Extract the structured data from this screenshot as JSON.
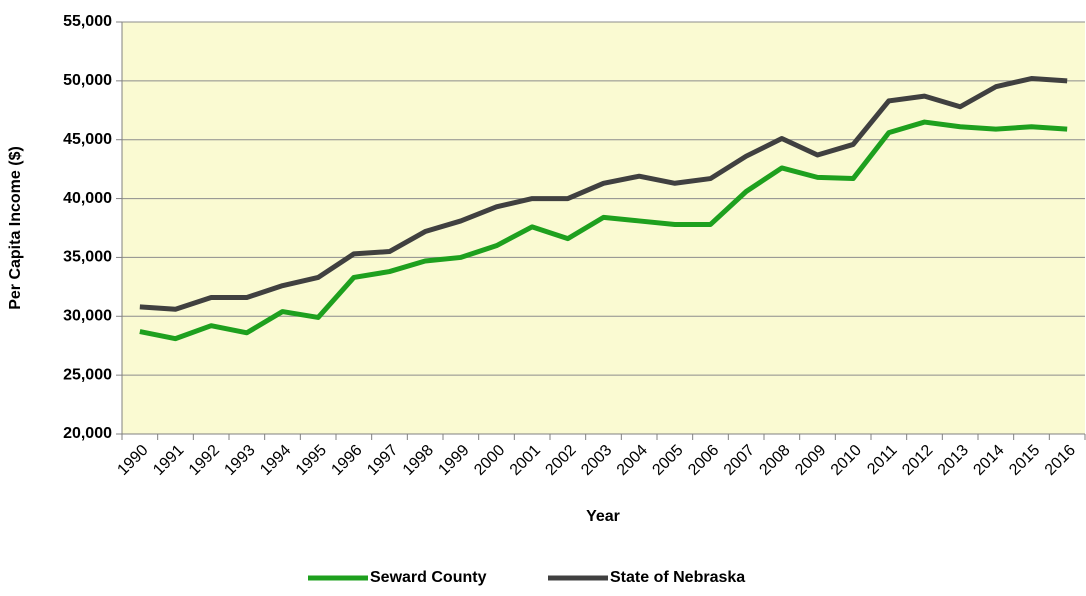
{
  "chart_data": {
    "type": "line",
    "x_label": "Year",
    "y_label": "Per Capita Income ($)",
    "categories": [
      "1990",
      "1991",
      "1992",
      "1993",
      "1994",
      "1995",
      "1996",
      "1997",
      "1998",
      "1999",
      "2000",
      "2001",
      "2002",
      "2003",
      "2004",
      "2005",
      "2006",
      "2007",
      "2008",
      "2009",
      "2010",
      "2011",
      "2012",
      "2013",
      "2014",
      "2015",
      "2016"
    ],
    "series": [
      {
        "name": "Seward County",
        "color": "#1ea01e",
        "values": [
          28700,
          28100,
          29200,
          28600,
          30400,
          29900,
          33300,
          33800,
          34700,
          35000,
          36000,
          37600,
          36600,
          38400,
          38100,
          37800,
          37800,
          40600,
          42600,
          41800,
          41700,
          45600,
          46500,
          46100,
          45900,
          46100,
          45900
        ]
      },
      {
        "name": "State of Nebraska",
        "color": "#404040",
        "values": [
          30800,
          30600,
          31600,
          31600,
          32600,
          33300,
          35300,
          35500,
          37200,
          38100,
          39300,
          40000,
          40000,
          41300,
          41900,
          41300,
          41700,
          43600,
          45100,
          43700,
          44600,
          48300,
          48700,
          47800,
          49500,
          50200,
          50000
        ]
      }
    ],
    "ylim": [
      20000,
      55000
    ],
    "yticks": [
      {
        "value": 20000,
        "label": "20,000"
      },
      {
        "value": 25000,
        "label": "25,000"
      },
      {
        "value": 30000,
        "label": "30,000"
      },
      {
        "value": 35000,
        "label": "35,000"
      },
      {
        "value": 40000,
        "label": "40,000"
      },
      {
        "value": 45000,
        "label": "45,000"
      },
      {
        "value": 50000,
        "label": "50,000"
      },
      {
        "value": 55000,
        "label": "55,000"
      }
    ],
    "grid": true,
    "plot_background": "#fafad2",
    "legend": "bottom"
  }
}
